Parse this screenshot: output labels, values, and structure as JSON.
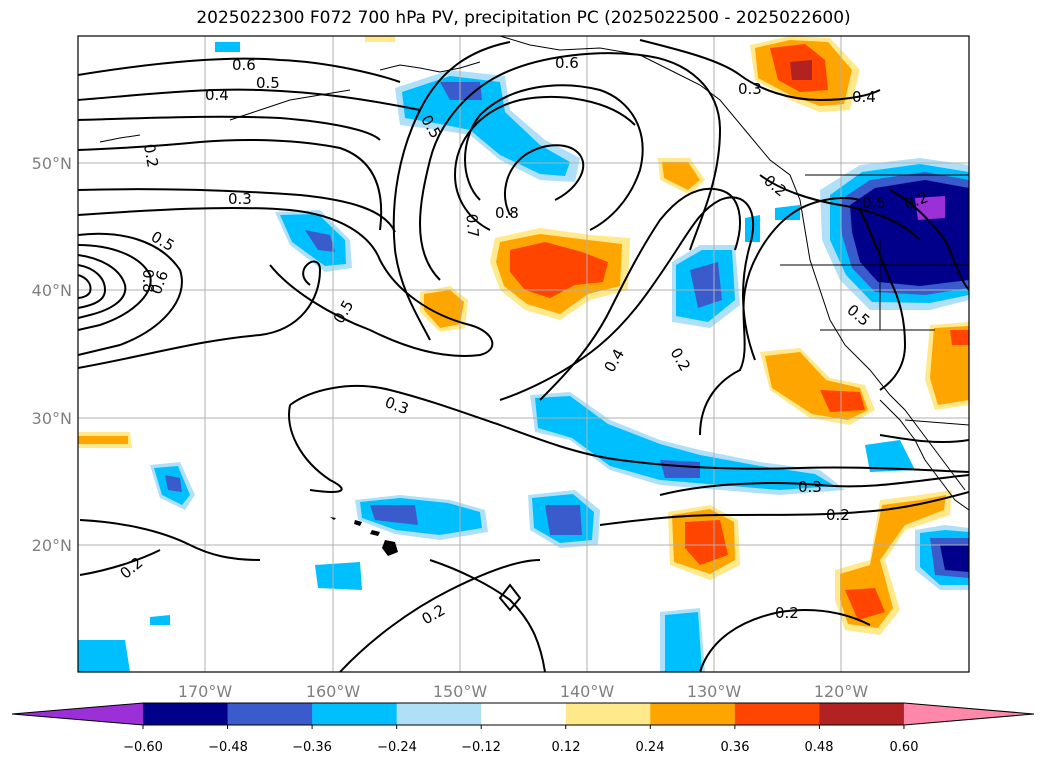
{
  "title": "2025022300 F072 700 hPa PV, precipitation PC (2025022500 - 2025022600)",
  "lat_labels": [
    "50°N",
    "40°N",
    "30°N",
    "20°N"
  ],
  "lon_labels": [
    "170°W",
    "160°W",
    "150°W",
    "140°W",
    "130°W",
    "120°W"
  ],
  "contour_labels": [
    "0.6",
    "0.5",
    "0.4",
    "0.2",
    "0.5",
    "0.6",
    "0.3",
    "0.4",
    "0.5",
    "0.7",
    "0.8",
    "0.3",
    "0.5",
    "0.6",
    "0.8",
    "0.5",
    "0.4",
    "0.2",
    "0.3",
    "0.3",
    "0.2",
    "0.2",
    "0.2",
    "0.2",
    "0.2",
    "0.5",
    "0.2"
  ],
  "colorbar": {
    "ticks": [
      "−0.60",
      "−0.48",
      "−0.36",
      "−0.24",
      "−0.12",
      "0.12",
      "0.24",
      "0.36",
      "0.48",
      "0.60"
    ],
    "colors": [
      "#9b30d9",
      "#00008b",
      "#3a5bcc",
      "#00bfff",
      "#b0e0f8",
      "#ffffff",
      "#ffe98a",
      "#ffa500",
      "#ff4500",
      "#b22222",
      "#ff88aa"
    ]
  }
}
